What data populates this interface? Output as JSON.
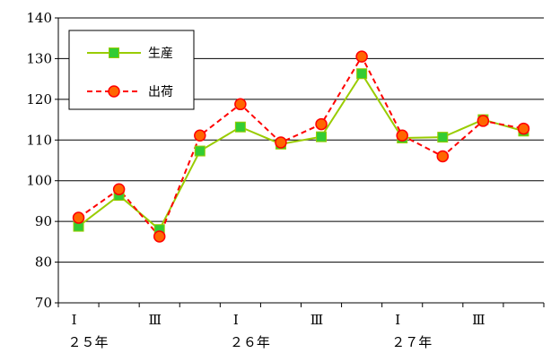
{
  "chart_data": {
    "type": "line",
    "title": "",
    "xlabel": "",
    "ylabel": "",
    "ylim": [
      70,
      140
    ],
    "yticks": [
      70,
      80,
      90,
      100,
      110,
      120,
      130,
      140
    ],
    "grid": true,
    "legend_placement": "top-left",
    "quarter_labels": [
      "Ⅰ",
      "",
      "Ⅲ",
      "",
      "Ⅰ",
      "",
      "Ⅲ",
      "",
      "Ⅰ",
      "",
      "Ⅲ",
      ""
    ],
    "year_labels": [
      {
        "index": 0,
        "label": "２５年"
      },
      {
        "index": 4,
        "label": "２６年"
      },
      {
        "index": 8,
        "label": "２７年"
      }
    ],
    "series": [
      {
        "name": "生産",
        "color": "#99cc00",
        "marker_color": "#33cc33",
        "marker": "square",
        "line_style": "solid",
        "values": [
          88.8,
          96.4,
          88.0,
          107.3,
          113.2,
          109.0,
          110.8,
          126.3,
          110.5,
          110.7,
          115.0,
          112.2
        ]
      },
      {
        "name": "出荷",
        "color": "#ff0000",
        "marker_color": "#ff6600",
        "marker": "circle",
        "line_style": "dashed",
        "values": [
          90.9,
          97.9,
          86.3,
          111.1,
          118.8,
          109.4,
          113.9,
          130.5,
          111.1,
          106.0,
          114.7,
          112.8
        ]
      }
    ]
  }
}
